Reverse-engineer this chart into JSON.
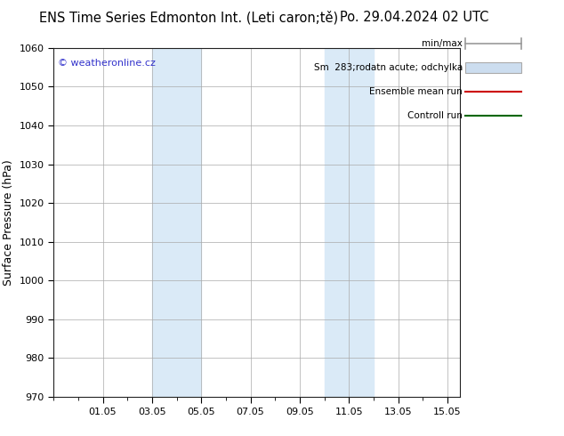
{
  "title_left": "ENS Time Series Edmonton Int. (Leti caron;tě)",
  "title_right": "Po. 29.04.2024 02 UTC",
  "ylabel": "Surface Pressure (hPa)",
  "ylim": [
    970,
    1060
  ],
  "yticks": [
    970,
    980,
    990,
    1000,
    1010,
    1020,
    1030,
    1040,
    1050,
    1060
  ],
  "xtick_labels": [
    "01.05",
    "03.05",
    "05.05",
    "07.05",
    "09.05",
    "11.05",
    "13.05",
    "15.05"
  ],
  "xtick_positions": [
    2,
    4,
    6,
    8,
    10,
    12,
    14,
    16
  ],
  "xlim": [
    0,
    16.5
  ],
  "shaded_bands": [
    {
      "x_start": 4.0,
      "x_end": 6.0,
      "color": "#daeaf7"
    },
    {
      "x_start": 11.0,
      "x_end": 13.0,
      "color": "#daeaf7"
    }
  ],
  "watermark": "© weatheronline.cz",
  "background_color": "#ffffff",
  "plot_bg_color": "#ffffff",
  "grid_color": "#aaaaaa",
  "title_fontsize": 10.5,
  "axis_label_fontsize": 9,
  "tick_fontsize": 8,
  "legend_fontsize": 7.5,
  "watermark_color": "#3333cc"
}
